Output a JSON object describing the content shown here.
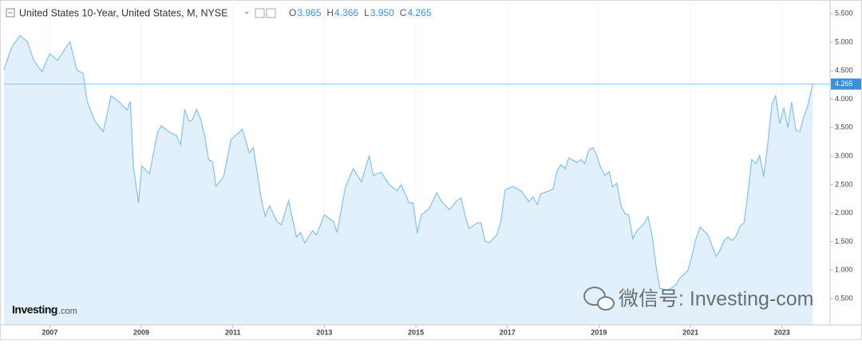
{
  "chart_data": {
    "type": "area",
    "title": "United States 10-Year, United States, M, NYSE",
    "ohlc": [
      {
        "key": "O",
        "label": "3.965"
      },
      {
        "key": "H",
        "label": "4.366"
      },
      {
        "key": "L",
        "label": "3.950"
      },
      {
        "key": "C",
        "label": "4.265"
      }
    ],
    "current_price": {
      "value": 4.265,
      "label": "4.265"
    },
    "logo": {
      "main": "Investing",
      "suffix": ".com"
    },
    "watermark": "微信号: Investing-com",
    "color": "#8cc4ec",
    "fill_color": "#e1f0fa",
    "grid": false,
    "x": [
      2006.0,
      2006.16,
      2006.35,
      2006.51,
      2006.65,
      2006.83,
      2007.0,
      2007.17,
      2007.35,
      2007.44,
      2007.59,
      2007.73,
      2007.82,
      2007.99,
      2008.17,
      2008.34,
      2008.52,
      2008.69,
      2008.76,
      2008.83,
      2008.94,
      2009.01,
      2009.18,
      2009.36,
      2009.44,
      2009.62,
      2009.77,
      2009.86,
      2009.95,
      2010.04,
      2010.12,
      2010.21,
      2010.3,
      2010.39,
      2010.47,
      2010.56,
      2010.63,
      2010.8,
      2010.96,
      2011.21,
      2011.36,
      2011.45,
      2011.62,
      2011.71,
      2011.8,
      2011.97,
      2012.06,
      2012.22,
      2012.39,
      2012.48,
      2012.57,
      2012.74,
      2012.83,
      2013.0,
      2013.2,
      2013.28,
      2013.46,
      2013.63,
      2013.81,
      2013.98,
      2014.07,
      2014.24,
      2014.42,
      2014.59,
      2014.68,
      2014.85,
      2014.94,
      2015.03,
      2015.12,
      2015.29,
      2015.46,
      2015.55,
      2015.73,
      2015.9,
      2015.99,
      2016.08,
      2016.16,
      2016.34,
      2016.42,
      2016.51,
      2016.6,
      2016.77,
      2016.86,
      2016.95,
      2017.12,
      2017.3,
      2017.47,
      2017.56,
      2017.65,
      2017.73,
      2017.91,
      2018.0,
      2018.08,
      2018.17,
      2018.26,
      2018.34,
      2018.52,
      2018.61,
      2018.69,
      2018.78,
      2018.87,
      2018.95,
      2019.04,
      2019.13,
      2019.22,
      2019.3,
      2019.39,
      2019.48,
      2019.57,
      2019.65,
      2019.74,
      2019.83,
      2020.0,
      2020.07,
      2020.16,
      2020.25,
      2020.33,
      2020.51,
      2020.68,
      2020.77,
      2020.94,
      2021.03,
      2021.12,
      2021.21,
      2021.38,
      2021.56,
      2021.64,
      2021.73,
      2021.82,
      2021.9,
      2021.99,
      2022.08,
      2022.17,
      2022.25,
      2022.34,
      2022.43,
      2022.51,
      2022.6,
      2022.69,
      2022.78,
      2022.86,
      2022.95,
      2023.04,
      2023.13,
      2023.21,
      2023.3,
      2023.39,
      2023.47,
      2023.56,
      2023.67
    ],
    "values": [
      4.51,
      4.9,
      5.12,
      5.01,
      4.68,
      4.48,
      4.8,
      4.68,
      4.9,
      5.01,
      4.51,
      4.45,
      3.95,
      3.61,
      3.43,
      4.06,
      3.95,
      3.81,
      3.96,
      2.8,
      2.18,
      2.83,
      2.69,
      3.43,
      3.53,
      3.42,
      3.36,
      3.2,
      3.82,
      3.61,
      3.64,
      3.82,
      3.64,
      3.34,
      2.94,
      2.9,
      2.47,
      2.64,
      3.29,
      3.47,
      3.06,
      3.15,
      2.25,
      1.94,
      2.13,
      1.85,
      1.8,
      2.22,
      1.58,
      1.66,
      1.48,
      1.69,
      1.62,
      1.97,
      1.85,
      1.66,
      2.46,
      2.78,
      2.55,
      3.01,
      2.66,
      2.72,
      2.5,
      2.39,
      2.5,
      2.18,
      2.18,
      1.65,
      1.97,
      2.08,
      2.36,
      2.22,
      2.06,
      2.22,
      2.27,
      1.94,
      1.73,
      1.83,
      1.83,
      1.51,
      1.48,
      1.62,
      1.87,
      2.41,
      2.47,
      2.39,
      2.2,
      2.29,
      2.15,
      2.34,
      2.39,
      2.43,
      2.73,
      2.85,
      2.78,
      2.97,
      2.89,
      2.94,
      2.87,
      3.11,
      3.15,
      3.01,
      2.8,
      2.66,
      2.73,
      2.46,
      2.53,
      2.13,
      1.99,
      1.97,
      1.55,
      1.69,
      1.83,
      1.94,
      1.62,
      1.06,
      0.68,
      0.65,
      0.74,
      0.86,
      0.99,
      1.24,
      1.55,
      1.76,
      1.62,
      1.24,
      1.34,
      1.51,
      1.58,
      1.52,
      1.59,
      1.76,
      1.83,
      2.32,
      2.94,
      2.87,
      3.01,
      2.64,
      3.22,
      3.92,
      4.06,
      3.57,
      3.85,
      3.5,
      3.95,
      3.46,
      3.43,
      3.67,
      3.88,
      4.265
    ],
    "xlim": [
      2006.0,
      2024.05
    ],
    "xticks": [
      2007,
      2009,
      2011,
      2013,
      2015,
      2017,
      2019,
      2021,
      2023
    ],
    "ylim": [
      0.04,
      5.67
    ],
    "yticks": [
      {
        "value": 0.5,
        "label": "0.500"
      },
      {
        "value": 1.0,
        "label": "1.000"
      },
      {
        "value": 1.5,
        "label": "1.500"
      },
      {
        "value": 2.0,
        "label": "2.000"
      },
      {
        "value": 2.5,
        "label": "2.500"
      },
      {
        "value": 3.0,
        "label": "3.000"
      },
      {
        "value": 3.5,
        "label": "3.500"
      },
      {
        "value": 4.0,
        "label": "4.000"
      },
      {
        "value": 4.5,
        "label": "4.500"
      },
      {
        "value": 5.0,
        "label": "5.000"
      },
      {
        "value": 5.5,
        "label": "5.500"
      }
    ]
  }
}
